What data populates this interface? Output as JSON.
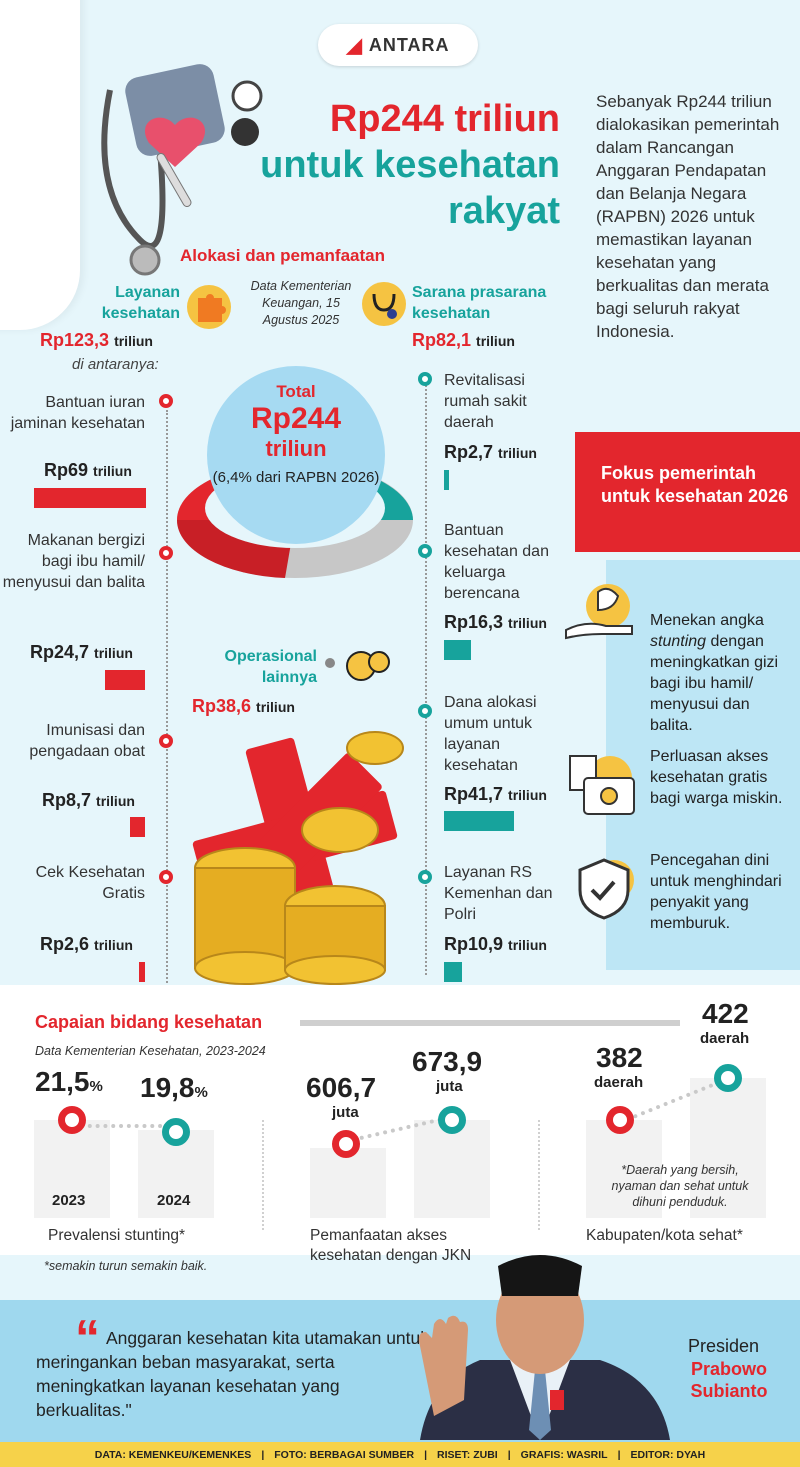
{
  "logo": "ANTARA",
  "title": [
    "Rp244 triliun",
    "untuk kesehatan",
    "rakyat"
  ],
  "intro": "Sebanyak Rp244 triliun dialokasikan pemerintah dalam Rancangan Anggaran Pendapatan dan Belanja Negara (RAPBN) 2026 untuk memastikan layanan kesehatan yang berkualitas dan merata bagi seluruh rakyat Indonesia.",
  "allocation": {
    "title": "Alokasi dan pemanfaatan",
    "source": "Data Kementerian Keuangan, 15 Agustus 2025",
    "total_label": "Total",
    "total_value": "Rp244",
    "total_unit": "triliun",
    "total_share": "(6,4% dari RAPBN 2026)",
    "layanan": {
      "label": "Layanan kesehatan",
      "value": "Rp123,3",
      "unit": "triliun",
      "note": "di antaranya:"
    },
    "sarana": {
      "label": "Sarana prasarana kesehatan",
      "value": "Rp82,1",
      "unit": "triliun"
    },
    "operasional": {
      "label": "Operasional lainnya",
      "value": "Rp38,6",
      "unit": "triliun"
    },
    "left_items": [
      {
        "text": "Bantuan iuran jaminan kesehatan",
        "value": "Rp69",
        "unit": "triliun"
      },
      {
        "text": "Makanan bergizi bagi ibu hamil/ menyusui dan balita",
        "value": "Rp24,7",
        "unit": "triliun"
      },
      {
        "text": "Imunisasi dan pengadaan obat",
        "value": "Rp8,7",
        "unit": "triliun"
      },
      {
        "text": "Cek Kesehatan Gratis",
        "value": "Rp2,6",
        "unit": "triliun"
      }
    ],
    "right_items": [
      {
        "text": "Revitalisasi rumah sakit daerah",
        "value": "Rp2,7",
        "unit": "triliun"
      },
      {
        "text": "Bantuan kesehatan dan keluarga berencana",
        "value": "Rp16,3",
        "unit": "triliun"
      },
      {
        "text": "Dana alokasi umum untuk layanan kesehatan",
        "value": "Rp41,7",
        "unit": "triliun"
      },
      {
        "text": "Layanan RS Kemenhan dan Polri",
        "value": "Rp10,9",
        "unit": "triliun"
      }
    ]
  },
  "focus": {
    "title": "Fokus pemerintah untuk kesehatan 2026",
    "items": [
      {
        "pre": "Menekan angka ",
        "em": "stunting",
        "post": " dengan meningkatkan gizi bagi ibu hamil/ menyusui dan balita."
      },
      {
        "pre": "Perluasan akses kesehatan gratis bagi warga miskin.",
        "em": "",
        "post": ""
      },
      {
        "pre": "Pencegahan dini untuk menghindari penyakit yang memburuk.",
        "em": "",
        "post": ""
      }
    ]
  },
  "achievements": {
    "title": "Capaian bidang kesehatan",
    "source": "Data Kementerian Kesehatan, 2023-2024",
    "stunting": {
      "v2023": "21,5",
      "v2024": "19,8",
      "unit": "%",
      "y1": "2023",
      "y2": "2024",
      "caption": "Prevalensi stunting*",
      "note": "*semakin turun semakin baik."
    },
    "jkn": {
      "v1": "606,7",
      "v2": "673,9",
      "unit": "juta",
      "caption": "Pemanfaatan akses kesehatan dengan JKN"
    },
    "kabkota": {
      "v1": "382",
      "v2": "422",
      "unit": "daerah",
      "caption": "Kabupaten/kota sehat*",
      "note": "*Daerah yang bersih, nyaman dan sehat untuk dihuni penduduk."
    }
  },
  "quote": {
    "text": "Anggaran kesehatan kita utamakan untuk meringankan beban masyarakat, serta meningkatkan layanan kesehatan yang berkualitas.\"",
    "role": "Presiden",
    "name": "Prabowo Subianto"
  },
  "footer": [
    "DATA: KEMENKEU/KEMENKES",
    "FOTO: BERBAGAI SUMBER",
    "RISET: ZUBI",
    "GRAFIS: WASRIL",
    "EDITOR: DYAH"
  ],
  "colors": {
    "red": "#e3262d",
    "teal": "#17a39c",
    "light_blue": "#a6daf2",
    "yellow": "#f6d24a"
  }
}
